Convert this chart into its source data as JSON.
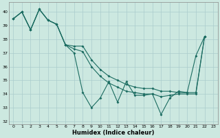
{
  "xlabel": "Humidex (Indice chaleur)",
  "bg_color": "#cce8e0",
  "grid_color": "#aacccc",
  "line_color": "#1a6b60",
  "ylim": [
    31.8,
    40.7
  ],
  "xlim": [
    -0.5,
    23.5
  ],
  "yticks": [
    32,
    33,
    34,
    35,
    36,
    37,
    38,
    39,
    40
  ],
  "xticks": [
    0,
    1,
    2,
    3,
    4,
    5,
    6,
    7,
    8,
    9,
    10,
    11,
    12,
    13,
    14,
    15,
    16,
    17,
    18,
    19,
    20,
    21,
    22,
    23
  ],
  "line_top": {
    "x": [
      0,
      1,
      2,
      3,
      4,
      5,
      6,
      7,
      8,
      9,
      10,
      11,
      12,
      13,
      14,
      15,
      16,
      17,
      18,
      19,
      20,
      21,
      22
    ],
    "y": [
      39.5,
      40.0,
      38.7,
      40.2,
      39.4,
      39.1,
      37.6,
      37.5,
      37.5,
      36.5,
      35.8,
      35.3,
      35.0,
      34.7,
      34.5,
      34.4,
      34.4,
      34.2,
      34.2,
      34.1,
      34.1,
      34.1,
      38.2
    ]
  },
  "line_mid": {
    "x": [
      0,
      1,
      2,
      3,
      4,
      5,
      6,
      7,
      8,
      9,
      10,
      11,
      12,
      13,
      14,
      15,
      16,
      17,
      18,
      19,
      20,
      21,
      22
    ],
    "y": [
      39.5,
      40.0,
      38.7,
      40.2,
      39.4,
      39.1,
      37.6,
      37.3,
      37.1,
      36.0,
      35.3,
      34.8,
      34.5,
      34.2,
      34.1,
      34.0,
      34.0,
      33.8,
      33.9,
      34.0,
      34.0,
      34.0,
      38.2
    ]
  },
  "line_zigzag": {
    "x": [
      0,
      1,
      2,
      3,
      4,
      5,
      6,
      7,
      8,
      9,
      10,
      11,
      12,
      13,
      14,
      15,
      16,
      17,
      18,
      19,
      20,
      21,
      22
    ],
    "y": [
      39.5,
      40.0,
      38.7,
      40.2,
      39.4,
      39.1,
      37.6,
      37.0,
      34.1,
      33.0,
      33.7,
      34.9,
      33.4,
      34.9,
      33.9,
      33.9,
      34.0,
      32.5,
      33.7,
      34.2,
      34.1,
      36.8,
      38.2
    ]
  }
}
